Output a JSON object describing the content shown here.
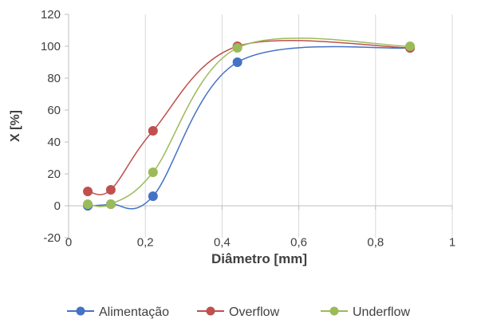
{
  "chart_data": {
    "type": "scatter",
    "title": "",
    "xlabel": "Diâmetro [mm]",
    "ylabel": "X [%]",
    "xlim": [
      0,
      1
    ],
    "ylim": [
      -20,
      120
    ],
    "x_ticks": [
      0,
      0.2,
      0.4,
      0.6,
      0.8,
      1
    ],
    "x_tick_labels": [
      "0",
      "0,2",
      "0,4",
      "0,6",
      "0,8",
      "1"
    ],
    "y_ticks": [
      -20,
      0,
      20,
      40,
      60,
      80,
      100,
      120
    ],
    "y_tick_labels": [
      "-20",
      "0",
      "20",
      "40",
      "60",
      "80",
      "100",
      "120"
    ],
    "grid": "vertical",
    "smooth_lines": true,
    "legend_position": "bottom",
    "series": [
      {
        "name": "Alimentação",
        "color": "#4472C4",
        "x": [
          0.05,
          0.11,
          0.22,
          0.44,
          0.89
        ],
        "y": [
          0,
          1,
          6,
          90,
          99
        ]
      },
      {
        "name": "Overflow",
        "color": "#C0504D",
        "x": [
          0.05,
          0.11,
          0.22,
          0.44,
          0.89
        ],
        "y": [
          9,
          10,
          47,
          100,
          99
        ]
      },
      {
        "name": "Underflow",
        "color": "#9BBB59",
        "x": [
          0.05,
          0.11,
          0.22,
          0.44,
          0.89
        ],
        "y": [
          1,
          1,
          21,
          99,
          100
        ]
      }
    ]
  }
}
